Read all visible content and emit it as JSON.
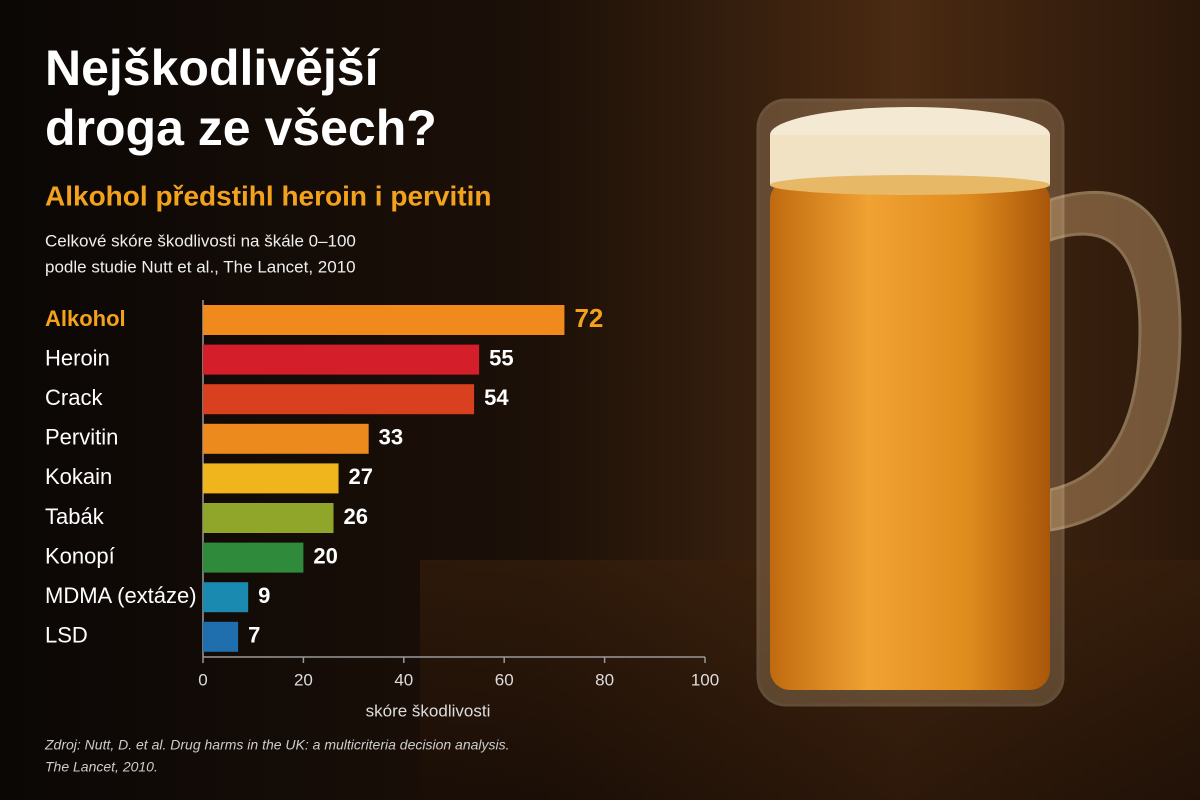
{
  "chart_data": {
    "type": "bar",
    "orientation": "horizontal",
    "title": [
      "Nejškodlivější",
      "droga ze všech?"
    ],
    "subtitle": "Alkohol předstihl heroin i pervitin",
    "description": [
      "Celkové skóre škodlivosti na škále 0–100",
      "podle studie Nutt et al., The Lancet, 2010"
    ],
    "categories": [
      "Alkohol",
      "Heroin",
      "Crack",
      "Pervitin",
      "Kokain",
      "Tabák",
      "Konopí",
      "MDMA (extáze)",
      "LSD"
    ],
    "values": [
      72,
      55,
      54,
      33,
      27,
      26,
      20,
      9,
      7
    ],
    "colors": [
      "#f08a1c",
      "#d41f2a",
      "#d9401f",
      "#ec8a1e",
      "#f0b41c",
      "#8fa62a",
      "#2f8a3c",
      "#1a8ab0",
      "#1f6fae"
    ],
    "highlight": 0,
    "highlight_color": "#f2a21c",
    "xlim": [
      0,
      100
    ],
    "xticks": [
      0,
      20,
      40,
      60,
      80,
      100
    ],
    "xlabel": "skóre škodlivosti",
    "source": [
      "Zdroj: Nutt, D. et al. Drug harms in the UK: a multicriteria decision analysis.",
      "The Lancet, 2010."
    ]
  }
}
